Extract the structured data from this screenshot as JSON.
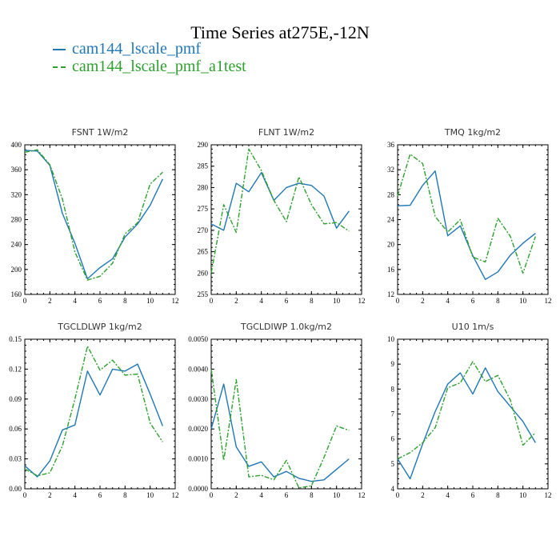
{
  "title": "Time Series at275E,-12N",
  "legend": [
    {
      "label": "cam144_lscale_pmf",
      "color": "#1f77b4",
      "dash": "none"
    },
    {
      "label": "cam144_lscale_pmf_a1test",
      "color": "#2ca02c",
      "dash": "6,2,2,2"
    }
  ],
  "chart_data": [
    {
      "type": "line",
      "title": "FSNT  1W/m2",
      "x": [
        0,
        1,
        2,
        3,
        4,
        5,
        6,
        7,
        8,
        9,
        10,
        11
      ],
      "xlim": [
        0,
        12
      ],
      "xticks": [
        "0",
        "2",
        "4",
        "6",
        "8",
        "10",
        "12"
      ],
      "ylim": [
        160,
        400
      ],
      "yticks": [
        "160",
        "200",
        "240",
        "280",
        "320",
        "360",
        "400"
      ],
      "series": [
        {
          "name": "cam144_lscale_pmf",
          "values": [
            391,
            390,
            367,
            290,
            242,
            185,
            203,
            217,
            252,
            273,
            303,
            345
          ]
        },
        {
          "name": "cam144_lscale_pmf_a1test",
          "values": [
            388,
            392,
            368,
            313,
            228,
            183,
            189,
            210,
            257,
            275,
            337,
            356
          ]
        }
      ]
    },
    {
      "type": "line",
      "title": "FLNT  1W/m2",
      "x": [
        0,
        1,
        2,
        3,
        4,
        5,
        6,
        7,
        8,
        9,
        10,
        11
      ],
      "xlim": [
        0,
        12
      ],
      "xticks": [
        "0",
        "2",
        "4",
        "6",
        "8",
        "10",
        "12"
      ],
      "ylim": [
        255,
        290
      ],
      "yticks": [
        "255",
        "260",
        "265",
        "270",
        "275",
        "280",
        "285",
        "290"
      ],
      "series": [
        {
          "name": "cam144_lscale_pmf",
          "values": [
            271.5,
            270,
            281,
            279,
            283.5,
            277,
            280,
            281,
            280.5,
            278,
            270.5,
            274.5
          ]
        },
        {
          "name": "cam144_lscale_pmf_a1test",
          "values": [
            260,
            276,
            269.5,
            289,
            284,
            277,
            272,
            282.5,
            276,
            271.5,
            271.8,
            269.8
          ]
        }
      ]
    },
    {
      "type": "line",
      "title": "TMQ  1kg/m2",
      "x": [
        0,
        1,
        2,
        3,
        4,
        5,
        6,
        7,
        8,
        9,
        10,
        11
      ],
      "xlim": [
        0,
        12
      ],
      "xticks": [
        "0",
        "2",
        "4",
        "6",
        "8",
        "10",
        "12"
      ],
      "ylim": [
        12,
        36
      ],
      "yticks": [
        "12",
        "16",
        "20",
        "24",
        "28",
        "32",
        "36"
      ],
      "series": [
        {
          "name": "cam144_lscale_pmf",
          "values": [
            26.2,
            26.3,
            29.5,
            31.8,
            21.4,
            23,
            18.2,
            14.4,
            15.6,
            18.3,
            20.2,
            21.8
          ]
        },
        {
          "name": "cam144_lscale_pmf_a1test",
          "values": [
            27.8,
            34.5,
            33,
            24.5,
            22,
            24,
            18,
            17.2,
            24.2,
            21.3,
            15.4,
            21.3
          ]
        }
      ]
    },
    {
      "type": "line",
      "title": "TGCLDLWP  1kg/m2",
      "x": [
        0,
        1,
        2,
        3,
        4,
        5,
        6,
        7,
        8,
        9,
        10,
        11
      ],
      "xlim": [
        0,
        12
      ],
      "xticks": [
        "0",
        "2",
        "4",
        "6",
        "8",
        "10",
        "12"
      ],
      "ylim": [
        0,
        0.15
      ],
      "yticks": [
        "0.00",
        "0.03",
        "0.06",
        "0.09",
        "0.12",
        "0.15"
      ],
      "series": [
        {
          "name": "cam144_lscale_pmf",
          "values": [
            0.023,
            0.012,
            0.028,
            0.059,
            0.064,
            0.118,
            0.094,
            0.12,
            0.118,
            0.125,
            0.095,
            0.063
          ]
        },
        {
          "name": "cam144_lscale_pmf_a1test",
          "values": [
            0.02,
            0.013,
            0.016,
            0.043,
            0.09,
            0.143,
            0.119,
            0.129,
            0.114,
            0.115,
            0.066,
            0.047
          ]
        }
      ]
    },
    {
      "type": "line",
      "title": "TGCLDIWP  1.0kg/m2",
      "x": [
        0,
        1,
        2,
        3,
        4,
        5,
        6,
        7,
        8,
        9,
        10,
        11
      ],
      "xlim": [
        0,
        12
      ],
      "xticks": [
        "0",
        "2",
        "4",
        "6",
        "8",
        "10",
        "12"
      ],
      "ylim": [
        0,
        0.005
      ],
      "yticks": [
        "0.0000",
        "0.0010",
        "0.0020",
        "0.0030",
        "0.0040",
        "0.0050"
      ],
      "series": [
        {
          "name": "cam144_lscale_pmf",
          "values": [
            0.002,
            0.0035,
            0.0014,
            0.00075,
            0.0009,
            0.0004,
            0.00058,
            0.00035,
            0.00025,
            0.0003,
            0.00065,
            0.001
          ]
        },
        {
          "name": "cam144_lscale_pmf_a1test",
          "values": [
            0.004,
            0.00095,
            0.00365,
            0.0004,
            0.00045,
            0.0003,
            0.00095,
            3e-05,
            0.0001,
            0.00105,
            0.0021,
            0.00195
          ]
        }
      ]
    },
    {
      "type": "line",
      "title": "U10  1m/s",
      "x": [
        0,
        1,
        2,
        3,
        4,
        5,
        6,
        7,
        8,
        9,
        10,
        11
      ],
      "xlim": [
        0,
        12
      ],
      "xticks": [
        "0",
        "2",
        "4",
        "6",
        "8",
        "10",
        "12"
      ],
      "ylim": [
        4,
        10
      ],
      "yticks": [
        "4",
        "5",
        "6",
        "7",
        "8",
        "9",
        "10"
      ],
      "series": [
        {
          "name": "cam144_lscale_pmf",
          "values": [
            5.2,
            4.4,
            5.8,
            7.1,
            8.2,
            8.65,
            7.8,
            8.85,
            7.9,
            7.3,
            6.7,
            5.85
          ]
        },
        {
          "name": "cam144_lscale_pmf_a1test",
          "values": [
            5.2,
            5.45,
            5.85,
            6.45,
            8.05,
            8.25,
            9.1,
            8.3,
            8.55,
            7.55,
            5.75,
            6.25
          ]
        }
      ]
    }
  ]
}
